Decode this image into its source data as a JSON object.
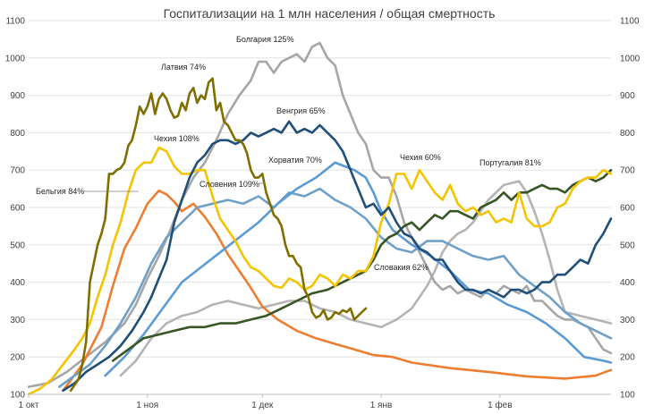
{
  "chart_data": {
    "type": "line",
    "title": "Госпитализации на 1 млн населения / общая смертность",
    "xlabel": "",
    "ylabel": "",
    "xlim": [
      0,
      152
    ],
    "ylim": [
      100,
      1100
    ],
    "yticks": [
      100,
      200,
      300,
      400,
      500,
      600,
      700,
      800,
      900,
      1000,
      1100
    ],
    "ytick_labels": [
      "100",
      "200",
      "300",
      "400",
      "500",
      "600",
      "700",
      "800",
      "900",
      "1000",
      "1100"
    ],
    "xticks": [
      {
        "label": "1 окт",
        "x": 0
      },
      {
        "label": "1 ноя",
        "x": 31
      },
      {
        "label": "1 дек",
        "x": 61
      },
      {
        "label": "1 янв",
        "x": 92
      },
      {
        "label": "1 фев",
        "x": 123
      }
    ],
    "grid": true,
    "series": [
      {
        "name": "Бельгия 84%",
        "color": "#ed7d31",
        "x": [
          9,
          14,
          19,
          22,
          25,
          28,
          31,
          34,
          36,
          38,
          40,
          43,
          46,
          49,
          52,
          55,
          58,
          61,
          65,
          70,
          75,
          80,
          85,
          90,
          95,
          100,
          110,
          120,
          130,
          140,
          146,
          148,
          150,
          152
        ],
        "y": [
          110,
          180,
          280,
          390,
          490,
          545,
          610,
          645,
          635,
          615,
          590,
          610,
          575,
          530,
          475,
          430,
          385,
          335,
          300,
          270,
          250,
          235,
          220,
          205,
          200,
          185,
          170,
          160,
          148,
          142,
          148,
          150,
          158,
          165
        ]
      },
      {
        "name": "Латвия 74%",
        "color": "#7f6f00",
        "x": [
          11,
          13,
          14,
          15,
          16,
          17,
          18,
          19,
          20,
          21,
          22,
          23,
          24,
          25,
          26,
          27,
          28,
          29,
          30,
          31,
          32,
          33,
          34,
          35,
          36,
          37,
          38,
          39,
          40,
          41,
          42,
          43,
          44,
          45,
          46,
          47,
          48,
          49,
          50,
          51,
          52,
          53,
          54,
          55,
          56,
          57,
          58,
          59,
          60,
          61,
          62,
          63,
          64,
          65,
          66,
          67,
          68,
          69,
          70,
          71,
          72,
          73,
          74,
          75,
          76,
          77,
          78,
          79,
          80,
          81,
          82,
          83,
          84,
          85,
          86,
          87,
          88
        ],
        "y": [
          110,
          140,
          180,
          240,
          400,
          450,
          500,
          530,
          570,
          690,
          690,
          700,
          705,
          720,
          765,
          780,
          820,
          870,
          850,
          870,
          905,
          850,
          890,
          905,
          890,
          860,
          840,
          845,
          880,
          860,
          905,
          920,
          880,
          900,
          890,
          935,
          945,
          860,
          880,
          830,
          820,
          800,
          780,
          780,
          770,
          745,
          700,
          680,
          680,
          690,
          640,
          610,
          580,
          570,
          550,
          500,
          470,
          470,
          450,
          440,
          380,
          360,
          320,
          305,
          310,
          325,
          300,
          305,
          320,
          315,
          325,
          320,
          330,
          300,
          310,
          320,
          330
        ]
      },
      {
        "name": "Чехия 108% / 60%",
        "color": "#f5c400",
        "x": [
          0,
          3,
          6,
          9,
          12,
          14,
          16,
          18,
          20,
          22,
          24,
          26,
          28,
          30,
          32,
          34,
          36,
          38,
          40,
          42,
          44,
          46,
          48,
          50,
          52,
          54,
          56,
          58,
          60,
          62,
          64,
          66,
          68,
          70,
          72,
          74,
          76,
          78,
          80,
          82,
          84,
          86,
          88,
          90,
          92,
          94,
          96,
          98,
          100,
          102,
          104,
          106,
          108,
          110,
          112,
          114,
          116,
          118,
          120,
          122,
          124,
          126,
          128,
          130,
          132,
          134,
          136,
          138,
          140,
          142,
          144,
          146,
          148,
          150,
          152
        ],
        "y": [
          100,
          115,
          140,
          180,
          220,
          250,
          290,
          360,
          420,
          500,
          560,
          640,
          700,
          720,
          720,
          760,
          750,
          710,
          690,
          690,
          700,
          700,
          630,
          570,
          540,
          510,
          470,
          440,
          430,
          410,
          390,
          385,
          410,
          400,
          380,
          390,
          420,
          410,
          390,
          420,
          410,
          430,
          430,
          470,
          560,
          610,
          690,
          690,
          650,
          700,
          670,
          640,
          620,
          660,
          610,
          590,
          600,
          580,
          590,
          560,
          570,
          560,
          640,
          570,
          550,
          550,
          560,
          600,
          610,
          650,
          670,
          680,
          680,
          700,
          690
        ]
      },
      {
        "name": "Словения 109%",
        "color": "#6fa0c8",
        "x": [
          8,
          12,
          16,
          20,
          24,
          28,
          32,
          36,
          40,
          44,
          48,
          52,
          56,
          60,
          64,
          68,
          72,
          76,
          80,
          84,
          88,
          92,
          96,
          100,
          104,
          108,
          112,
          116,
          120,
          124,
          128,
          132,
          136,
          140,
          144,
          148,
          152
        ],
        "y": [
          120,
          150,
          180,
          230,
          290,
          360,
          450,
          520,
          560,
          600,
          610,
          620,
          610,
          630,
          600,
          640,
          630,
          650,
          620,
          600,
          570,
          520,
          490,
          480,
          510,
          510,
          490,
          470,
          460,
          470,
          420,
          390,
          360,
          320,
          290,
          270,
          250
        ]
      },
      {
        "name": "Хорватия 70%",
        "color": "#5b9bd5",
        "x": [
          20,
          25,
          30,
          35,
          40,
          45,
          50,
          55,
          60,
          65,
          70,
          75,
          80,
          85,
          88,
          90,
          92,
          95,
          100,
          105,
          110,
          115,
          120,
          125,
          130,
          135,
          140,
          145,
          150,
          152
        ],
        "y": [
          150,
          200,
          260,
          330,
          400,
          440,
          480,
          520,
          560,
          610,
          650,
          680,
          720,
          700,
          680,
          640,
          590,
          540,
          500,
          470,
          430,
          380,
          370,
          340,
          320,
          290,
          250,
          200,
          190,
          185
        ]
      },
      {
        "name": "Венгрия 65%",
        "color": "#1f4e79",
        "x": [
          9,
          12,
          15,
          18,
          21,
          24,
          27,
          30,
          32,
          34,
          36,
          38,
          40,
          42,
          44,
          46,
          48,
          50,
          52,
          54,
          56,
          58,
          60,
          62,
          64,
          66,
          68,
          70,
          72,
          74,
          76,
          78,
          80,
          82,
          84,
          86,
          88,
          90,
          92,
          94,
          96,
          98,
          100,
          102,
          104,
          106,
          108,
          110,
          112,
          114,
          116,
          118,
          120,
          122,
          124,
          126,
          128,
          130,
          132,
          134,
          136,
          138,
          140,
          142,
          144,
          146,
          148,
          150,
          152
        ],
        "y": [
          110,
          130,
          160,
          180,
          200,
          230,
          270,
          320,
          360,
          410,
          460,
          560,
          620,
          680,
          720,
          740,
          770,
          780,
          780,
          770,
          780,
          800,
          790,
          800,
          810,
          800,
          830,
          800,
          810,
          800,
          820,
          800,
          780,
          750,
          700,
          650,
          600,
          610,
          580,
          600,
          560,
          530,
          520,
          490,
          480,
          460,
          460,
          430,
          400,
          380,
          380,
          370,
          380,
          370,
          360,
          380,
          380,
          370,
          380,
          400,
          400,
          420,
          420,
          440,
          460,
          450,
          500,
          530,
          570
        ]
      },
      {
        "name": "Болгария 125%",
        "color": "#a6a6a6",
        "x": [
          0,
          5,
          10,
          15,
          20,
          25,
          28,
          31,
          34,
          37,
          40,
          43,
          46,
          49,
          52,
          55,
          58,
          60,
          62,
          64,
          66,
          68,
          70,
          72,
          74,
          76,
          78,
          80,
          82,
          84,
          86,
          88,
          90,
          92,
          94,
          96,
          98,
          100,
          102,
          104,
          106,
          108,
          110,
          112,
          114,
          116,
          118,
          120,
          122,
          124,
          126,
          128,
          130,
          132,
          134,
          136,
          138,
          140,
          142,
          144,
          146,
          148,
          150,
          152
        ],
        "y": [
          120,
          130,
          160,
          200,
          240,
          290,
          340,
          410,
          470,
          540,
          620,
          680,
          720,
          780,
          850,
          900,
          940,
          990,
          990,
          960,
          990,
          1000,
          1010,
          990,
          1030,
          1040,
          1000,
          980,
          900,
          850,
          800,
          770,
          700,
          680,
          680,
          630,
          560,
          520,
          480,
          440,
          400,
          380,
          390,
          370,
          380,
          370,
          360,
          380,
          370,
          390,
          380,
          370,
          390,
          350,
          350,
          330,
          310,
          300,
          300,
          290,
          280,
          250,
          220,
          210
        ]
      },
      {
        "name": "Португалия 81%",
        "color": "#b4b4b4",
        "x": [
          24,
          28,
          32,
          36,
          40,
          44,
          48,
          52,
          56,
          60,
          64,
          68,
          72,
          76,
          80,
          84,
          88,
          92,
          96,
          100,
          102,
          104,
          106,
          108,
          110,
          112,
          114,
          116,
          118,
          120,
          122,
          124,
          126,
          128,
          130,
          132,
          134,
          136,
          138,
          140,
          144,
          148,
          152
        ],
        "y": [
          150,
          190,
          250,
          290,
          310,
          320,
          340,
          350,
          340,
          330,
          340,
          350,
          350,
          330,
          320,
          300,
          290,
          280,
          300,
          330,
          360,
          390,
          430,
          480,
          510,
          530,
          540,
          560,
          590,
          620,
          640,
          660,
          665,
          670,
          640,
          590,
          530,
          460,
          380,
          320,
          310,
          300,
          290
        ]
      },
      {
        "name": "Словакия 62%",
        "color": "#375623",
        "x": [
          22,
          26,
          30,
          34,
          38,
          42,
          46,
          50,
          54,
          58,
          62,
          66,
          70,
          74,
          78,
          82,
          84,
          86,
          88,
          90,
          92,
          94,
          96,
          98,
          100,
          102,
          104,
          106,
          108,
          110,
          112,
          114,
          116,
          118,
          120,
          122,
          124,
          126,
          128,
          130,
          132,
          134,
          136,
          138,
          140,
          142,
          144,
          146,
          148,
          150,
          152
        ],
        "y": [
          190,
          220,
          250,
          260,
          270,
          280,
          280,
          290,
          290,
          300,
          310,
          330,
          350,
          370,
          380,
          400,
          410,
          420,
          430,
          460,
          500,
          520,
          530,
          550,
          560,
          540,
          560,
          580,
          570,
          590,
          590,
          580,
          570,
          600,
          610,
          620,
          640,
          620,
          640,
          640,
          650,
          660,
          650,
          650,
          640,
          660,
          670,
          680,
          670,
          680,
          700
        ]
      }
    ],
    "annotations": [
      {
        "text": "Болгария 125%",
        "series": "Болгария 125%"
      },
      {
        "text": "Латвия 74%",
        "series": "Латвия 74%"
      },
      {
        "text": "Венгрия 65%",
        "series": "Венгрия 65%"
      },
      {
        "text": "Чехия 108%",
        "series": "Чехия 108% / 60%"
      },
      {
        "text": "Хорватия 70%",
        "series": "Хорватия 70%"
      },
      {
        "text": "Чехия 60%",
        "series": "Чехия 108% / 60%"
      },
      {
        "text": "Португалия 81%",
        "series": "Португалия 81%"
      },
      {
        "text": "Словения 109%",
        "series": "Словения 109%"
      },
      {
        "text": "Бельгия 84%",
        "series": "Бельгия 84%"
      },
      {
        "text": "Словакия 62%",
        "series": "Словакия 62%"
      }
    ]
  }
}
